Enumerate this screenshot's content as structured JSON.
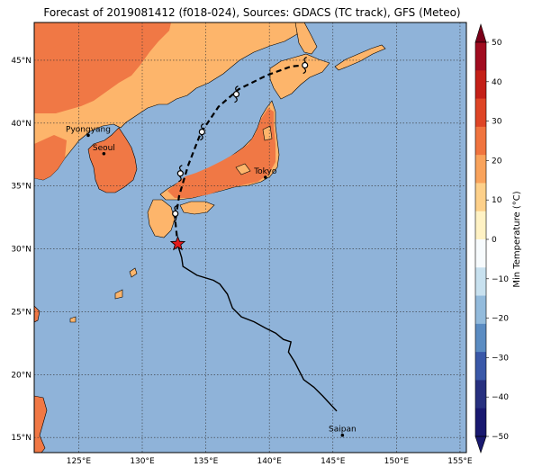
{
  "title": "Forecast of 2019081412 (f018-024), Sources: GDACS (TC track), GFS (Meteo)",
  "lon_ticks": [
    "125°E",
    "130°E",
    "135°E",
    "140°E",
    "145°E",
    "150°E",
    "155°E"
  ],
  "lat_ticks": [
    "15°N",
    "20°N",
    "25°N",
    "30°N",
    "35°N",
    "40°N",
    "45°N"
  ],
  "cities": [
    {
      "name": "Pyongyang",
      "lon": 125.75,
      "lat": 39.03
    },
    {
      "name": "Seoul",
      "lon": 126.98,
      "lat": 37.57
    },
    {
      "name": "Tokyo",
      "lon": 139.69,
      "lat": 35.69
    },
    {
      "name": "Saipan",
      "lon": 145.75,
      "lat": 15.18
    }
  ],
  "colorbar": {
    "label": "Min Temperature (°C)",
    "ticks": [
      "−50",
      "−40",
      "−30",
      "−20",
      "−10",
      "0",
      "10",
      "20",
      "30",
      "40",
      "50"
    ],
    "colors": [
      "#191970",
      "#27307f",
      "#3a58a8",
      "#5b8cc2",
      "#93bbdc",
      "#c8e1ef",
      "#f7fbfd",
      "#fff2c4",
      "#fdd08a",
      "#f9a35c",
      "#f0743f",
      "#de4526",
      "#c42018",
      "#a10c20",
      "#7a0019"
    ]
  },
  "colors": {
    "ocean": "#8fb3d9",
    "land_warm": "#fdb56b",
    "land_hot": "#f07845",
    "track": "#000000",
    "current_position": "#e21b1b"
  },
  "track_observed": [
    {
      "lon": 145.3,
      "lat": 17.1
    },
    {
      "lon": 144.2,
      "lat": 18.3
    },
    {
      "lon": 143.5,
      "lat": 19.0
    },
    {
      "lon": 142.7,
      "lat": 19.6
    },
    {
      "lon": 142.0,
      "lat": 21.0
    },
    {
      "lon": 141.5,
      "lat": 21.8
    },
    {
      "lon": 141.7,
      "lat": 22.6
    },
    {
      "lon": 141.1,
      "lat": 22.8
    },
    {
      "lon": 140.5,
      "lat": 23.3
    },
    {
      "lon": 139.7,
      "lat": 23.7
    },
    {
      "lon": 138.8,
      "lat": 24.2
    },
    {
      "lon": 137.8,
      "lat": 24.6
    },
    {
      "lon": 137.1,
      "lat": 25.3
    },
    {
      "lon": 136.7,
      "lat": 26.4
    },
    {
      "lon": 136.1,
      "lat": 27.2
    },
    {
      "lon": 135.6,
      "lat": 27.5
    },
    {
      "lon": 134.3,
      "lat": 27.9
    },
    {
      "lon": 133.2,
      "lat": 28.6
    },
    {
      "lon": 133.1,
      "lat": 29.3
    },
    {
      "lon": 132.8,
      "lat": 30.3
    }
  ],
  "track_forecast": [
    {
      "lon": 132.8,
      "lat": 30.3
    },
    {
      "lon": 132.6,
      "lat": 32.2
    },
    {
      "lon": 132.9,
      "lat": 34.2
    },
    {
      "lon": 133.6,
      "lat": 36.6
    },
    {
      "lon": 134.6,
      "lat": 39.2
    },
    {
      "lon": 136.0,
      "lat": 41.3
    },
    {
      "lon": 137.6,
      "lat": 42.7
    },
    {
      "lon": 139.8,
      "lat": 43.8
    },
    {
      "lon": 141.7,
      "lat": 44.5
    },
    {
      "lon": 142.7,
      "lat": 44.6
    }
  ],
  "track_points": [
    {
      "lon": 132.6,
      "lat": 32.8
    },
    {
      "lon": 133.0,
      "lat": 36.0
    },
    {
      "lon": 134.7,
      "lat": 39.3
    },
    {
      "lon": 137.4,
      "lat": 42.3
    },
    {
      "lon": 142.8,
      "lat": 44.6
    }
  ],
  "current_position": {
    "lon": 132.8,
    "lat": 30.4
  }
}
